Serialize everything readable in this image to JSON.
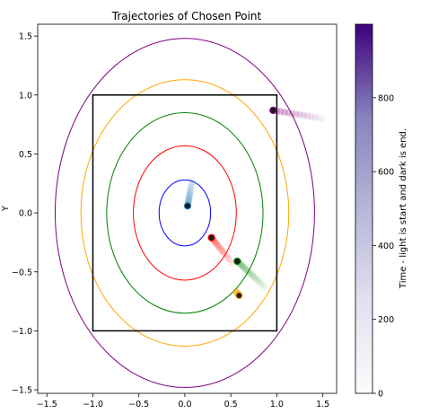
{
  "chart_data": {
    "type": "line",
    "title": "Trajectories of Chosen Point",
    "xlabel": "",
    "ylabel": "Y",
    "xlim": [
      -1.6,
      1.65
    ],
    "ylim": [
      -1.53,
      1.6
    ],
    "x_ticks": [
      -1.5,
      -1.0,
      -0.5,
      0.0,
      0.5,
      1.0,
      1.5
    ],
    "y_ticks": [
      -1.5,
      -1.0,
      -0.5,
      0.0,
      0.5,
      1.0,
      1.5
    ],
    "x_tick_labels": [
      "−1.5",
      "−1.0",
      "−0.5",
      "0.0",
      "0.5",
      "1.0",
      "1.5"
    ],
    "y_tick_labels": [
      "−1.5",
      "−1.0",
      "−0.5",
      "0.0",
      "0.5",
      "1.0",
      "1.5"
    ],
    "grid": false,
    "ellipses": [
      {
        "color": "#0000ff",
        "rx": 0.28,
        "ry": 0.28
      },
      {
        "color": "#ff0000",
        "rx": 0.56,
        "ry": 0.57
      },
      {
        "color": "#008000",
        "rx": 0.85,
        "ry": 0.85
      },
      {
        "color": "#ffa500",
        "rx": 1.13,
        "ry": 1.13
      },
      {
        "color": "#800080",
        "rx": 1.41,
        "ry": 1.48
      }
    ],
    "square": {
      "color": "#000000",
      "x": [
        -1.0,
        1.0
      ],
      "y": [
        -1.0,
        1.0
      ]
    },
    "trajectories": [
      {
        "color": "#1f77b4",
        "start": [
          0.08,
          0.28
        ],
        "end": [
          0.03,
          0.06
        ]
      },
      {
        "color": "#ff0000",
        "start": [
          0.52,
          -0.43
        ],
        "end": [
          0.29,
          -0.21
        ]
      },
      {
        "color": "#008000",
        "start": [
          0.87,
          -0.63
        ],
        "end": [
          0.57,
          -0.41
        ]
      },
      {
        "color": "#ffa500",
        "start": [
          0.55,
          -0.66
        ],
        "end": [
          0.59,
          -0.7
        ]
      },
      {
        "color": "#800080",
        "start": [
          1.5,
          0.8
        ],
        "end": [
          0.96,
          0.87
        ]
      }
    ],
    "colorbar": {
      "label": "Time - light is start and dark is end.",
      "range": [
        0,
        999
      ],
      "ticks": [
        0,
        200,
        400,
        600,
        800
      ],
      "colormap": "Purples"
    }
  }
}
